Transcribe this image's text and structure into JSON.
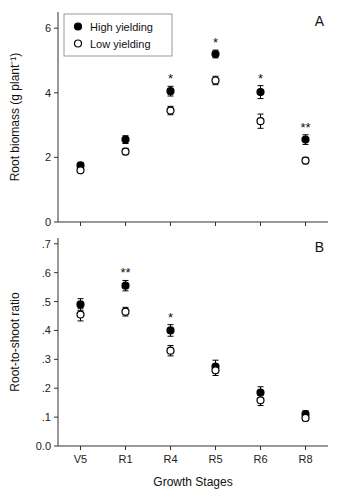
{
  "chart_data": [
    {
      "type": "errorbar",
      "title": "A",
      "ylabel": "Root biomass (g plant⁻¹)",
      "categories": [
        "V5",
        "R1",
        "R4",
        "R5",
        "R6",
        "R8"
      ],
      "tick_labels": "y",
      "series": [
        {
          "name": "High yielding",
          "color": "#000000",
          "marker": "circle",
          "values": [
            1.75,
            2.55,
            4.05,
            5.2,
            4.02,
            2.55
          ],
          "errors": [
            0.08,
            0.12,
            0.15,
            0.12,
            0.2,
            0.15
          ]
        },
        {
          "name": "Low yielding",
          "color": "#000000",
          "marker": "circle-open",
          "values": [
            1.6,
            2.18,
            3.45,
            4.38,
            3.12,
            1.9
          ],
          "errors": [
            0.07,
            0.1,
            0.13,
            0.13,
            0.22,
            0.1
          ]
        }
      ],
      "significance": [
        null,
        null,
        "*",
        "*",
        "*",
        "**"
      ],
      "ylim": [
        0,
        6.5
      ],
      "yticks": [
        0,
        2,
        4,
        6
      ],
      "legend": "upper left",
      "grid": false
    },
    {
      "type": "errorbar",
      "title": "B",
      "ylabel": "Root-to-shoot ratio",
      "xlabel": "Growth Stages",
      "categories": [
        "V5",
        "R1",
        "R4",
        "R5",
        "R6",
        "R8"
      ],
      "series": [
        {
          "color": "#000000",
          "marker": "circle",
          "values": [
            0.49,
            0.555,
            0.4,
            0.275,
            0.185,
            0.11
          ],
          "errors": [
            0.02,
            0.018,
            0.02,
            0.022,
            0.02,
            0.012
          ]
        },
        {
          "color": "#000000",
          "marker": "circle-open",
          "values": [
            0.455,
            0.465,
            0.33,
            0.262,
            0.158,
            0.097
          ],
          "errors": [
            0.022,
            0.015,
            0.018,
            0.018,
            0.018,
            0.01
          ]
        }
      ],
      "significance": [
        null,
        "**",
        "*",
        null,
        null,
        null
      ],
      "ylim": [
        0.0,
        0.72
      ],
      "yticks": [
        {
          "value": 0.0,
          "label": "0.0"
        },
        {
          "value": 0.1,
          "label": ".1"
        },
        {
          "value": 0.2,
          "label": ".2"
        },
        {
          "value": 0.3,
          "label": ".3"
        },
        {
          "value": 0.4,
          "label": ".4"
        },
        {
          "value": 0.5,
          "label": ".5"
        },
        {
          "value": 0.6,
          "label": ".6"
        },
        {
          "value": 0.7,
          "label": ".7"
        }
      ],
      "grid": false
    }
  ]
}
